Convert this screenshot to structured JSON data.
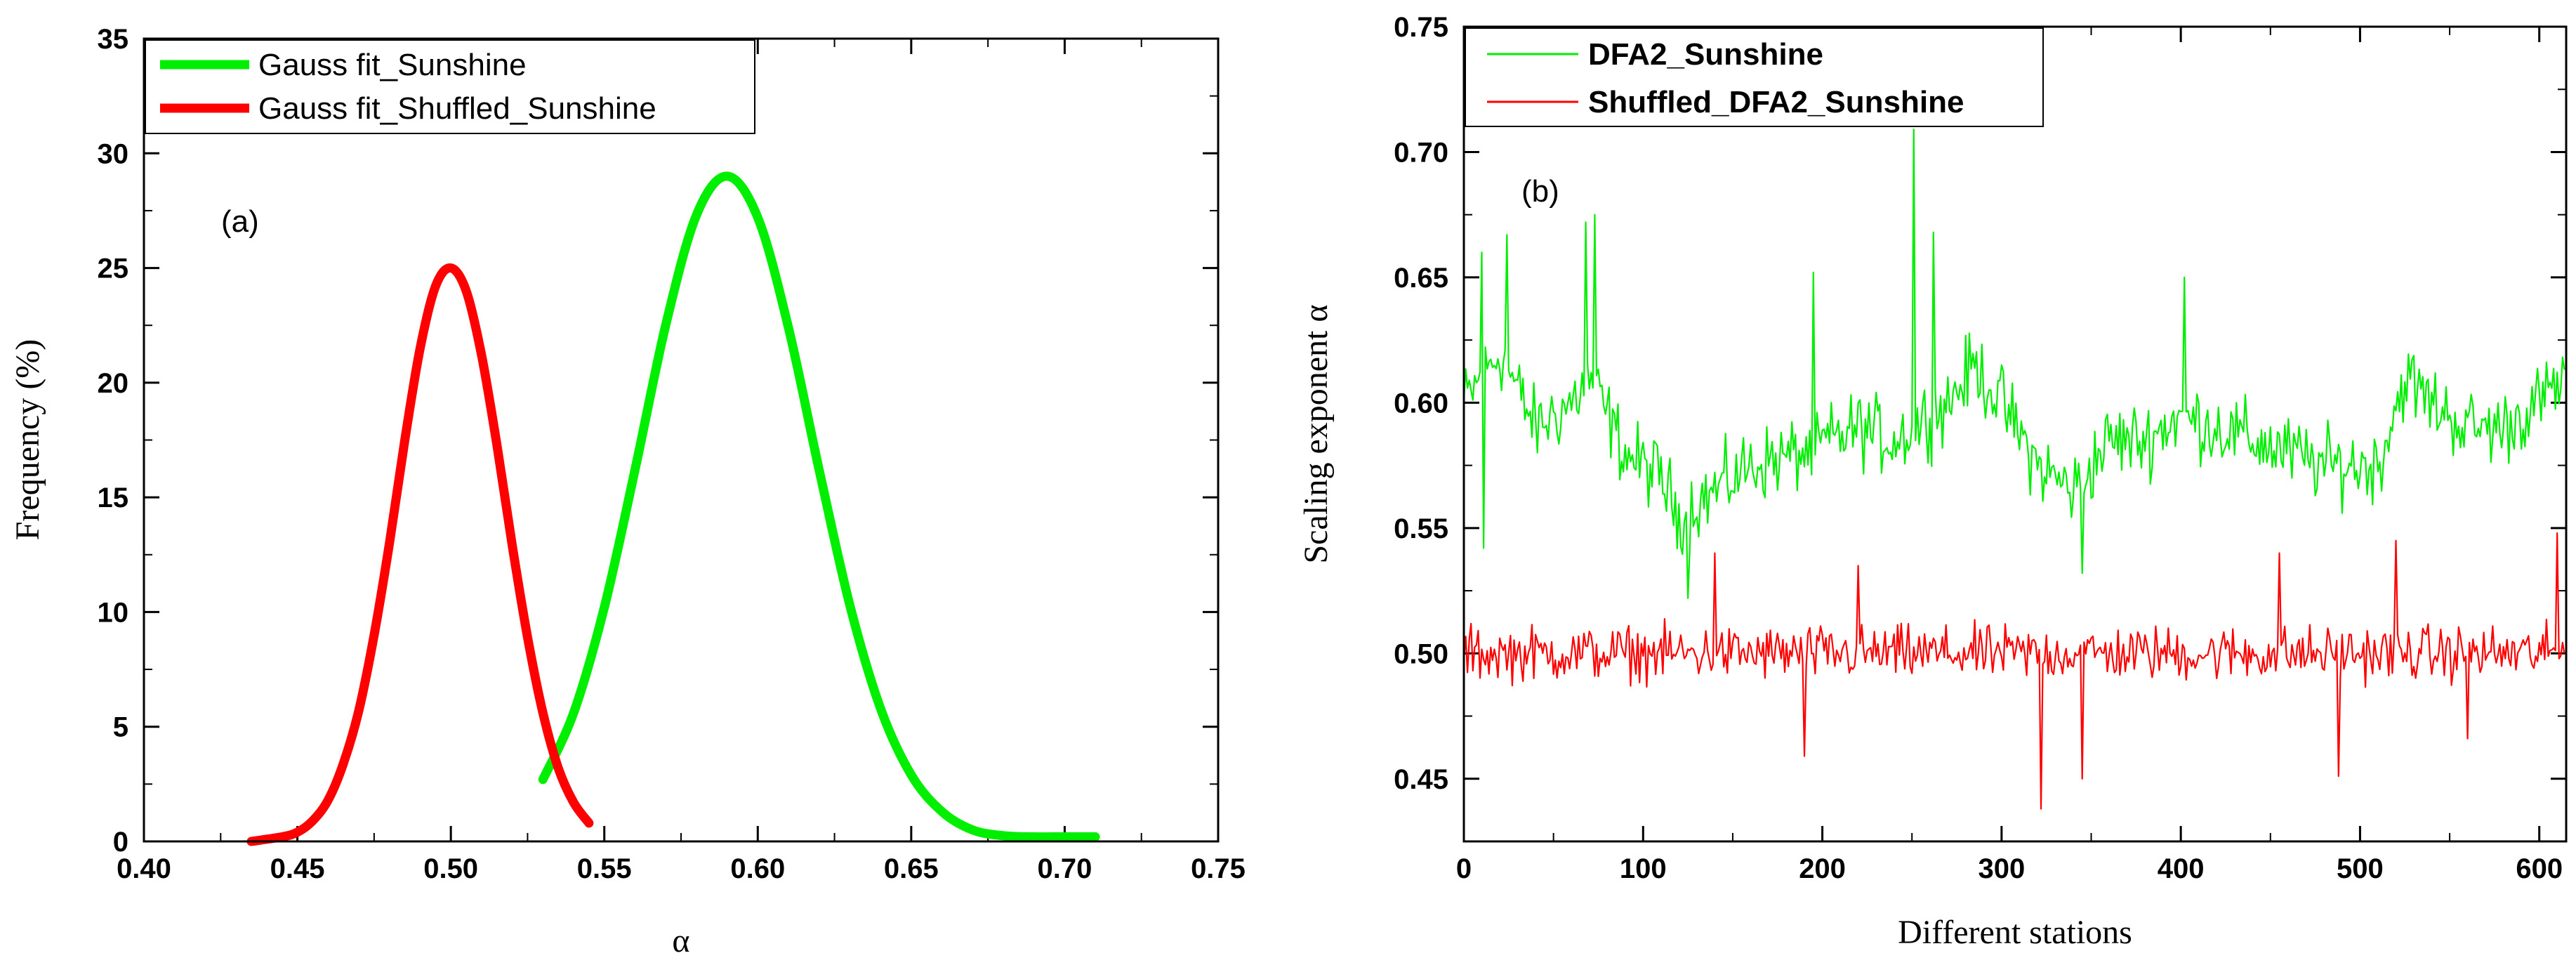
{
  "chart_data": [
    {
      "panel": "(a)",
      "type": "line",
      "xlabel": "α",
      "ylabel": "Frequency (%)",
      "xlim": [
        0.4,
        0.75
      ],
      "ylim": [
        0,
        35
      ],
      "xticks": [
        "0.40",
        "0.45",
        "0.50",
        "0.55",
        "0.60",
        "0.65",
        "0.70",
        "0.75"
      ],
      "yticks": [
        "0",
        "5",
        "10",
        "15",
        "20",
        "25",
        "30",
        "35"
      ],
      "legend_position": "top-left",
      "series": [
        {
          "name": "Gauss fit_Sunshine",
          "color": "#00ee00",
          "x": [
            0.53,
            0.54,
            0.55,
            0.56,
            0.57,
            0.58,
            0.59,
            0.6,
            0.61,
            0.62,
            0.63,
            0.64,
            0.65,
            0.66,
            0.67,
            0.68,
            0.69,
            0.7,
            0.71
          ],
          "y": [
            2.7,
            5.6,
            10.2,
            16.2,
            22.5,
            27.3,
            29.0,
            27.2,
            22.4,
            16.2,
            10.3,
            5.8,
            2.9,
            1.3,
            0.5,
            0.25,
            0.2,
            0.2,
            0.2
          ]
        },
        {
          "name": "Gauss fit_Shuffled_Sunshine",
          "color": "#ff0000",
          "x": [
            0.435,
            0.445,
            0.45,
            0.455,
            0.46,
            0.465,
            0.47,
            0.475,
            0.48,
            0.485,
            0.49,
            0.495,
            0.5,
            0.505,
            0.51,
            0.515,
            0.52,
            0.525,
            0.53,
            0.535,
            0.54,
            0.545
          ],
          "y": [
            0.0,
            0.2,
            0.4,
            0.9,
            1.8,
            3.4,
            5.7,
            9.0,
            13.0,
            17.5,
            21.5,
            24.2,
            25.0,
            24.0,
            21.2,
            17.3,
            12.9,
            8.9,
            5.6,
            3.2,
            1.7,
            0.8
          ]
        }
      ]
    },
    {
      "panel": "(b)",
      "type": "line",
      "xlabel": "Different stations",
      "ylabel": "Scaling exponent α",
      "xlim": [
        0,
        615
      ],
      "ylim": [
        0.425,
        0.75
      ],
      "xticks": [
        "0",
        "100",
        "200",
        "300",
        "400",
        "500",
        "600"
      ],
      "yticks": [
        "0.45",
        "0.50",
        "0.55",
        "0.60",
        "0.65",
        "0.70",
        "0.75"
      ],
      "legend_position": "top-left",
      "series": [
        {
          "name": "DFA2_Sunshine",
          "color": "#00ee00",
          "n": 615,
          "profile": [
            [
              0,
              0.6
            ],
            [
              20,
              0.62
            ],
            [
              40,
              0.59
            ],
            [
              60,
              0.6
            ],
            [
              70,
              0.61
            ],
            [
              90,
              0.58
            ],
            [
              110,
              0.57
            ],
            [
              120,
              0.555
            ],
            [
              140,
              0.565
            ],
            [
              160,
              0.575
            ],
            [
              190,
              0.58
            ],
            [
              220,
              0.59
            ],
            [
              240,
              0.585
            ],
            [
              250,
              0.59
            ],
            [
              270,
              0.6
            ],
            [
              285,
              0.615
            ],
            [
              300,
              0.6
            ],
            [
              320,
              0.575
            ],
            [
              340,
              0.565
            ],
            [
              360,
              0.585
            ],
            [
              380,
              0.585
            ],
            [
              400,
              0.595
            ],
            [
              420,
              0.59
            ],
            [
              440,
              0.585
            ],
            [
              460,
              0.58
            ],
            [
              480,
              0.575
            ],
            [
              510,
              0.575
            ],
            [
              525,
              0.61
            ],
            [
              540,
              0.6
            ],
            [
              560,
              0.59
            ],
            [
              580,
              0.59
            ],
            [
              600,
              0.6
            ],
            [
              615,
              0.61
            ]
          ],
          "amplitude": 0.022,
          "peaks": [
            [
              251,
              0.709
            ],
            [
              73,
              0.675
            ],
            [
              68,
              0.672
            ],
            [
              24,
              0.667
            ],
            [
              262,
              0.668
            ],
            [
              10,
              0.66
            ],
            [
              402,
              0.65
            ],
            [
              195,
              0.652
            ],
            [
              345,
              0.532
            ],
            [
              125,
              0.522
            ],
            [
              11,
              0.542
            ]
          ]
        },
        {
          "name": "Shuffled_DFA2_Sunshine",
          "color": "#ff0000",
          "n": 615,
          "profile": [
            [
              0,
              0.5
            ],
            [
              615,
              0.5
            ]
          ],
          "amplitude": 0.016,
          "peaks": [
            [
              322,
              0.438
            ],
            [
              488,
              0.451
            ],
            [
              610,
              0.548
            ],
            [
              520,
              0.545
            ],
            [
              140,
              0.54
            ],
            [
              455,
              0.54
            ],
            [
              190,
              0.459
            ],
            [
              345,
              0.45
            ],
            [
              220,
              0.535
            ],
            [
              560,
              0.466
            ]
          ]
        }
      ]
    }
  ]
}
